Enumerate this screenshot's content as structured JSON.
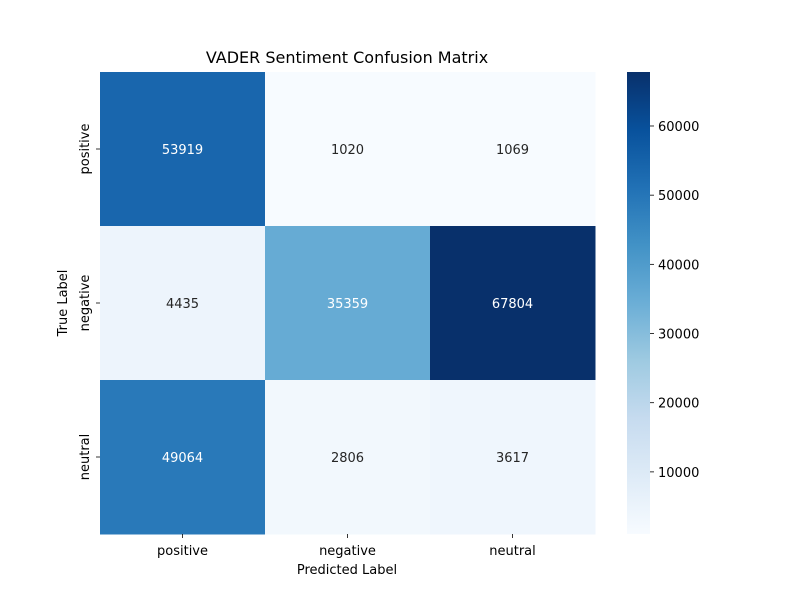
{
  "chart_data": {
    "type": "heatmap",
    "title": "VADER Sentiment Confusion Matrix",
    "xlabel": "Predicted Label",
    "ylabel": "True Label",
    "x_categories": [
      "positive",
      "negative",
      "neutral"
    ],
    "y_categories": [
      "positive",
      "negative",
      "neutral"
    ],
    "values": [
      [
        53919,
        1020,
        1069
      ],
      [
        4435,
        35359,
        67804
      ],
      [
        49064,
        2806,
        3617
      ]
    ],
    "colormap": "Blues",
    "colorbar": {
      "range": [
        1020,
        67804
      ],
      "ticks": [
        10000,
        20000,
        30000,
        40000,
        50000,
        60000
      ],
      "tick_labels": [
        "10000",
        "20000",
        "30000",
        "40000",
        "50000",
        "60000"
      ]
    },
    "colors": {
      "low": "#f7fbff",
      "high": "#08306b",
      "annotation_dark": "#262626",
      "annotation_light": "#ffffff"
    }
  }
}
